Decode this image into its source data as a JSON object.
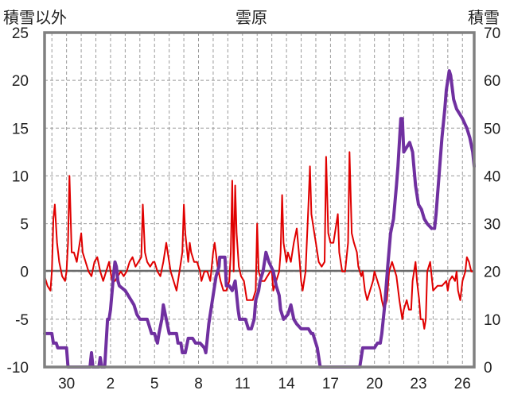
{
  "chart_data": {
    "type": "line",
    "title": "雲原",
    "left_axis_label": "積雪以外",
    "right_axis_label": "積雪",
    "y_left": {
      "min": -10,
      "max": 25,
      "ticks": [
        -10,
        -5,
        0,
        5,
        10,
        15,
        20,
        25
      ]
    },
    "y_right": {
      "min": 0,
      "max": 70,
      "ticks": [
        0,
        10,
        20,
        30,
        40,
        50,
        60,
        70
      ]
    },
    "x": {
      "min": 28.5,
      "max": 57.8,
      "ticks": [
        30,
        33,
        36,
        39,
        42,
        45,
        48,
        51,
        54,
        57
      ],
      "tick_labels": [
        "30",
        "2",
        "5",
        "8",
        "11",
        "14",
        "17",
        "20",
        "23",
        "26"
      ]
    },
    "grid": "vertical dashed daily, horizontal dashed at left-axis ticks",
    "series": [
      {
        "axis": "left",
        "color": "#e00000",
        "points": [
          [
            28.5,
            -0.5
          ],
          [
            28.7,
            -1.5
          ],
          [
            28.9,
            -2
          ],
          [
            29.0,
            0
          ],
          [
            29.1,
            5.5
          ],
          [
            29.2,
            7
          ],
          [
            29.35,
            3
          ],
          [
            29.5,
            1
          ],
          [
            29.7,
            -0.5
          ],
          [
            29.9,
            -1
          ],
          [
            30.0,
            0
          ],
          [
            30.1,
            3
          ],
          [
            30.2,
            10
          ],
          [
            30.35,
            2
          ],
          [
            30.5,
            2
          ],
          [
            30.7,
            1
          ],
          [
            30.9,
            3
          ],
          [
            31.0,
            4
          ],
          [
            31.1,
            2
          ],
          [
            31.3,
            1
          ],
          [
            31.5,
            0
          ],
          [
            31.7,
            -0.5
          ],
          [
            31.9,
            1
          ],
          [
            32.1,
            1.5
          ],
          [
            32.3,
            0
          ],
          [
            32.5,
            -1
          ],
          [
            32.7,
            0
          ],
          [
            32.9,
            1
          ],
          [
            33.0,
            0
          ],
          [
            33.1,
            -1
          ],
          [
            33.3,
            -1
          ],
          [
            33.5,
            -0.5
          ],
          [
            33.7,
            0
          ],
          [
            33.9,
            -0.5
          ],
          [
            34.1,
            0
          ],
          [
            34.3,
            1
          ],
          [
            34.5,
            1.5
          ],
          [
            34.7,
            0.5
          ],
          [
            34.9,
            1
          ],
          [
            35.1,
            1.5
          ],
          [
            35.2,
            7
          ],
          [
            35.35,
            2
          ],
          [
            35.5,
            1
          ],
          [
            35.7,
            0.5
          ],
          [
            35.9,
            1
          ],
          [
            36.0,
            1
          ],
          [
            36.2,
            0
          ],
          [
            36.4,
            -0.5
          ],
          [
            36.6,
            1
          ],
          [
            36.8,
            3
          ],
          [
            36.9,
            2
          ],
          [
            37.1,
            0
          ],
          [
            37.3,
            -1
          ],
          [
            37.5,
            -2
          ],
          [
            37.7,
            0
          ],
          [
            37.9,
            2
          ],
          [
            38.0,
            7
          ],
          [
            38.1,
            4
          ],
          [
            38.3,
            1
          ],
          [
            38.4,
            3
          ],
          [
            38.5,
            2
          ],
          [
            38.7,
            1
          ],
          [
            38.9,
            1
          ],
          [
            39.1,
            0
          ],
          [
            39.2,
            -1
          ],
          [
            39.4,
            0
          ],
          [
            39.6,
            0
          ],
          [
            39.8,
            -1
          ],
          [
            40.0,
            2
          ],
          [
            40.1,
            3
          ],
          [
            40.3,
            0.5
          ],
          [
            40.5,
            -1
          ],
          [
            40.7,
            -2
          ],
          [
            40.9,
            -2
          ],
          [
            41.1,
            -1
          ],
          [
            41.2,
            2
          ],
          [
            41.3,
            9.5
          ],
          [
            41.4,
            0
          ],
          [
            41.5,
            9
          ],
          [
            41.6,
            4
          ],
          [
            41.75,
            0.5
          ],
          [
            41.9,
            -0.5
          ],
          [
            42.1,
            -1
          ],
          [
            42.3,
            -3
          ],
          [
            42.5,
            -3
          ],
          [
            42.7,
            -3
          ],
          [
            42.9,
            -2
          ],
          [
            43.0,
            5
          ],
          [
            43.1,
            0
          ],
          [
            43.3,
            -1
          ],
          [
            43.5,
            -1
          ],
          [
            43.7,
            -0.5
          ],
          [
            43.9,
            0
          ],
          [
            44.0,
            0
          ],
          [
            44.1,
            -2
          ],
          [
            44.3,
            -1
          ],
          [
            44.5,
            0
          ],
          [
            44.6,
            2
          ],
          [
            44.7,
            8
          ],
          [
            44.8,
            3
          ],
          [
            45.0,
            1
          ],
          [
            45.1,
            2
          ],
          [
            45.3,
            1
          ],
          [
            45.5,
            3
          ],
          [
            45.7,
            4.5
          ],
          [
            45.9,
            1
          ],
          [
            46.0,
            -1
          ],
          [
            46.1,
            -2
          ],
          [
            46.3,
            0
          ],
          [
            46.5,
            7
          ],
          [
            46.6,
            11
          ],
          [
            46.7,
            6
          ],
          [
            46.9,
            4
          ],
          [
            47.0,
            3
          ],
          [
            47.2,
            1
          ],
          [
            47.4,
            0.5
          ],
          [
            47.6,
            1
          ],
          [
            47.7,
            12
          ],
          [
            47.85,
            4
          ],
          [
            48.0,
            3
          ],
          [
            48.2,
            3
          ],
          [
            48.4,
            5
          ],
          [
            48.5,
            6
          ],
          [
            48.6,
            2
          ],
          [
            48.8,
            0
          ],
          [
            49.0,
            0
          ],
          [
            49.2,
            3
          ],
          [
            49.3,
            12.5
          ],
          [
            49.45,
            4
          ],
          [
            49.6,
            3
          ],
          [
            49.8,
            2
          ],
          [
            49.9,
            0.5
          ],
          [
            50.1,
            -0.5
          ],
          [
            50.2,
            0
          ],
          [
            50.35,
            -2
          ],
          [
            50.5,
            -3
          ],
          [
            50.7,
            -2
          ],
          [
            50.9,
            -1
          ],
          [
            51.0,
            0
          ],
          [
            51.2,
            -1
          ],
          [
            51.4,
            -2
          ],
          [
            51.5,
            -3
          ],
          [
            51.65,
            -4
          ],
          [
            51.85,
            -3
          ],
          [
            52.0,
            0
          ],
          [
            52.2,
            1
          ],
          [
            52.5,
            -0.5
          ],
          [
            52.7,
            -3
          ],
          [
            52.8,
            -4
          ],
          [
            52.9,
            -5
          ],
          [
            53.0,
            -4
          ],
          [
            53.2,
            -3
          ],
          [
            53.35,
            -4
          ],
          [
            53.5,
            -4
          ],
          [
            53.6,
            -1
          ],
          [
            53.8,
            1
          ],
          [
            53.9,
            -1
          ],
          [
            54.05,
            -3
          ],
          [
            54.15,
            -5
          ],
          [
            54.3,
            -5
          ],
          [
            54.4,
            -6
          ],
          [
            54.5,
            -5
          ],
          [
            54.6,
            0
          ],
          [
            54.8,
            1
          ],
          [
            55.0,
            -2
          ],
          [
            55.3,
            -1.5
          ],
          [
            55.6,
            -1.5
          ],
          [
            55.9,
            -1
          ],
          [
            56.0,
            -2
          ],
          [
            56.1,
            -1
          ],
          [
            56.3,
            -0.5
          ],
          [
            56.5,
            -1
          ],
          [
            56.6,
            0
          ],
          [
            56.7,
            -2
          ],
          [
            56.85,
            -3
          ],
          [
            57.0,
            -1
          ],
          [
            57.2,
            0
          ],
          [
            57.3,
            1.5
          ],
          [
            57.45,
            1
          ],
          [
            57.6,
            0
          ],
          [
            57.8,
            0
          ]
        ]
      },
      {
        "axis": "right",
        "color": "#7030a0",
        "points": [
          [
            28.5,
            7
          ],
          [
            29.0,
            7
          ],
          [
            29.1,
            5
          ],
          [
            29.3,
            5
          ],
          [
            29.4,
            4
          ],
          [
            30.0,
            4
          ],
          [
            30.1,
            0
          ],
          [
            31.6,
            0
          ],
          [
            31.7,
            3
          ],
          [
            31.8,
            0
          ],
          [
            32.2,
            0
          ],
          [
            32.3,
            2
          ],
          [
            32.4,
            0
          ],
          [
            32.6,
            0
          ],
          [
            32.7,
            5
          ],
          [
            32.8,
            10
          ],
          [
            32.9,
            10
          ],
          [
            33.0,
            12
          ],
          [
            33.2,
            19
          ],
          [
            33.3,
            22
          ],
          [
            33.4,
            21
          ],
          [
            33.5,
            18
          ],
          [
            33.6,
            17
          ],
          [
            34.0,
            16
          ],
          [
            34.2,
            15
          ],
          [
            34.6,
            13
          ],
          [
            34.8,
            11
          ],
          [
            35.0,
            10
          ],
          [
            35.5,
            10
          ],
          [
            35.7,
            8
          ],
          [
            35.8,
            7
          ],
          [
            36.0,
            7
          ],
          [
            36.2,
            5
          ],
          [
            36.3,
            7
          ],
          [
            36.5,
            10
          ],
          [
            36.6,
            13
          ],
          [
            36.8,
            10
          ],
          [
            37.0,
            7
          ],
          [
            37.5,
            7
          ],
          [
            37.6,
            5
          ],
          [
            37.8,
            5
          ],
          [
            37.9,
            3
          ],
          [
            38.1,
            3
          ],
          [
            38.3,
            6
          ],
          [
            38.6,
            6
          ],
          [
            38.8,
            5
          ],
          [
            39.1,
            5
          ],
          [
            39.4,
            4
          ],
          [
            39.5,
            3
          ],
          [
            39.6,
            6
          ],
          [
            39.7,
            9
          ],
          [
            40.0,
            15
          ],
          [
            40.2,
            19
          ],
          [
            40.4,
            21
          ],
          [
            40.45,
            23
          ],
          [
            40.8,
            23
          ],
          [
            40.9,
            17
          ],
          [
            41.1,
            17
          ],
          [
            41.3,
            16
          ],
          [
            41.5,
            18
          ],
          [
            41.7,
            12
          ],
          [
            41.8,
            10
          ],
          [
            42.2,
            10
          ],
          [
            42.4,
            8
          ],
          [
            42.6,
            8
          ],
          [
            42.8,
            10
          ],
          [
            42.9,
            14
          ],
          [
            43.1,
            16
          ],
          [
            43.2,
            18
          ],
          [
            43.4,
            20
          ],
          [
            43.6,
            24
          ],
          [
            43.8,
            22
          ],
          [
            44.1,
            20
          ],
          [
            44.3,
            17
          ],
          [
            44.5,
            15
          ],
          [
            44.6,
            12
          ],
          [
            44.8,
            10
          ],
          [
            45.1,
            11
          ],
          [
            45.3,
            13
          ],
          [
            45.5,
            10
          ],
          [
            45.7,
            9
          ],
          [
            46.0,
            8
          ],
          [
            46.5,
            8
          ],
          [
            46.7,
            7
          ],
          [
            46.8,
            7
          ],
          [
            47.1,
            4
          ],
          [
            47.3,
            0
          ],
          [
            48.0,
            0
          ],
          [
            50.0,
            0
          ],
          [
            50.2,
            4
          ],
          [
            50.5,
            4
          ],
          [
            51.0,
            4
          ],
          [
            51.2,
            5
          ],
          [
            51.4,
            5
          ],
          [
            51.5,
            7
          ],
          [
            51.7,
            13
          ],
          [
            51.9,
            21
          ],
          [
            52.1,
            28
          ],
          [
            52.3,
            31
          ],
          [
            52.5,
            38
          ],
          [
            52.6,
            42
          ],
          [
            52.8,
            52
          ],
          [
            52.9,
            52
          ],
          [
            53.0,
            45
          ],
          [
            53.2,
            46
          ],
          [
            53.4,
            47
          ],
          [
            53.6,
            45
          ],
          [
            53.8,
            38
          ],
          [
            54.0,
            34
          ],
          [
            54.2,
            33
          ],
          [
            54.4,
            31
          ],
          [
            54.6,
            30
          ],
          [
            54.9,
            29
          ],
          [
            55.1,
            29
          ],
          [
            55.2,
            32
          ],
          [
            55.4,
            40
          ],
          [
            55.6,
            48
          ],
          [
            55.8,
            54
          ],
          [
            55.9,
            58
          ],
          [
            56.1,
            62
          ],
          [
            56.2,
            61
          ],
          [
            56.4,
            56
          ],
          [
            56.6,
            54
          ],
          [
            56.8,
            53
          ],
          [
            57.0,
            52
          ],
          [
            57.3,
            50
          ],
          [
            57.5,
            48
          ],
          [
            57.7,
            45
          ],
          [
            57.8,
            42
          ]
        ],
        "gaps": [
          [
            44.15,
            44.6
          ],
          [
            54.9,
            55.1
          ]
        ]
      }
    ]
  }
}
